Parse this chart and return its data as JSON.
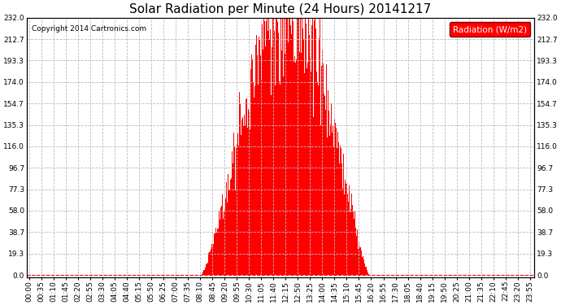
{
  "title": "Solar Radiation per Minute (24 Hours) 20141217",
  "copyright_text": "Copyright 2014 Cartronics.com",
  "legend_label": "Radiation (W/m2)",
  "background_color": "#ffffff",
  "plot_bg_color": "#ffffff",
  "bar_color": "#ff0000",
  "grid_color": "#bbbbbb",
  "zero_line_color": "#ff0000",
  "y_ticks": [
    0.0,
    19.3,
    38.7,
    58.0,
    77.3,
    96.7,
    116.0,
    135.3,
    154.7,
    174.0,
    193.3,
    212.7,
    232.0
  ],
  "ylim": [
    -2,
    232.0
  ],
  "total_minutes": 1440,
  "sunrise_minute": 492,
  "solar_noon_minute": 750,
  "sunset_minute": 975,
  "peak_value": 232.0,
  "title_fontsize": 11,
  "axis_fontsize": 6.5,
  "copyright_fontsize": 6.5,
  "legend_fontsize": 7.5,
  "tick_interval": 35
}
